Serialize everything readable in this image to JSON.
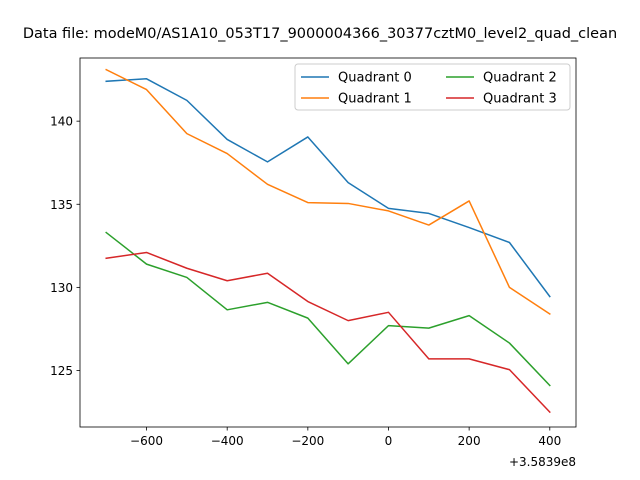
{
  "chart_data": {
    "type": "line",
    "title": "Data file: modeM0/AS1A10_053T17_9000004366_30377cztM0_level2_quad_clean",
    "xlabel": "",
    "ylabel": "",
    "x_offset_label": "+3.5839e8",
    "x": [
      -700,
      -600,
      -500,
      -400,
      -300,
      -200,
      -100,
      0,
      100,
      200,
      300,
      400
    ],
    "xlim": [
      -765,
      465
    ],
    "ylim": [
      121.6,
      143.8
    ],
    "x_ticks": [
      -600,
      -400,
      -200,
      0,
      200,
      400
    ],
    "x_tick_labels": [
      "−600",
      "−400",
      "−200",
      "0",
      "200",
      "400"
    ],
    "y_ticks": [
      125,
      130,
      135,
      140
    ],
    "y_tick_labels": [
      "125",
      "130",
      "135",
      "140"
    ],
    "grid": false,
    "legend_position": "upper right",
    "legend_columns": 2,
    "series": [
      {
        "name": "Quadrant 0",
        "color": "#1f77b4",
        "values": [
          142.4,
          142.55,
          141.25,
          138.9,
          137.55,
          139.05,
          136.3,
          134.75,
          134.45,
          133.6,
          132.7,
          129.45
        ]
      },
      {
        "name": "Quadrant 1",
        "color": "#ff7f0e",
        "values": [
          143.1,
          141.9,
          139.25,
          138.05,
          136.2,
          135.1,
          135.05,
          134.6,
          133.75,
          135.2,
          130.0,
          128.4
        ]
      },
      {
        "name": "Quadrant 2",
        "color": "#2ca02c",
        "values": [
          133.3,
          131.4,
          130.6,
          128.65,
          129.1,
          128.15,
          125.4,
          127.7,
          127.55,
          128.3,
          126.65,
          124.1
        ]
      },
      {
        "name": "Quadrant 3",
        "color": "#d62728",
        "values": [
          131.75,
          132.1,
          131.15,
          130.4,
          130.85,
          129.15,
          128.0,
          128.5,
          125.7,
          125.7,
          125.05,
          122.5
        ]
      }
    ]
  }
}
